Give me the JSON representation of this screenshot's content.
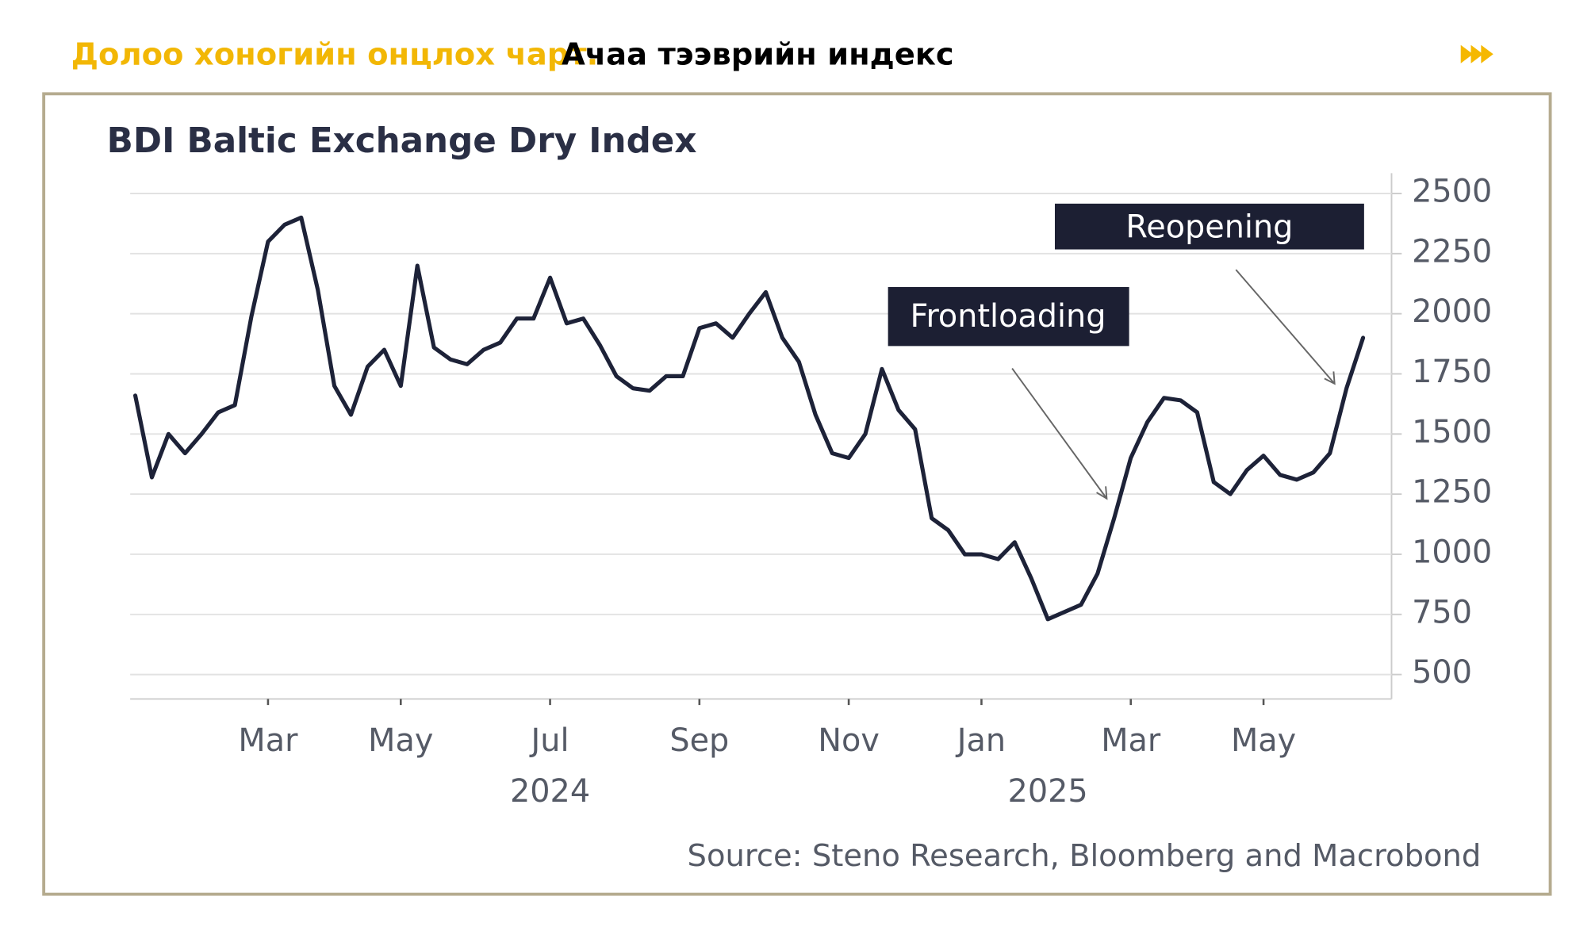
{
  "header": {
    "highlight": "Долоо хоногийн онцлох чарт.",
    "title": "Ачаа тээврийн индекс"
  },
  "chart_data": {
    "type": "line",
    "title": "BDI Baltic Exchange Dry Index",
    "categories": [
      null,
      null,
      null,
      null,
      null,
      null,
      null,
      null,
      "Mar",
      null,
      null,
      null,
      null,
      null,
      null,
      null,
      "May",
      null,
      null,
      null,
      null,
      null,
      null,
      null,
      null,
      "Jul",
      null,
      null,
      null,
      null,
      null,
      null,
      null,
      null,
      "Sep",
      null,
      null,
      null,
      null,
      null,
      null,
      null,
      null,
      "Nov",
      null,
      null,
      null,
      null,
      null,
      null,
      null,
      "Jan",
      null,
      null,
      null,
      null,
      null,
      null,
      null,
      null,
      "Mar",
      null,
      null,
      null,
      null,
      null,
      null,
      null,
      "May",
      null,
      null,
      null,
      null,
      null,
      null
    ],
    "year_labels": [
      {
        "label": "2024",
        "category": 25
      },
      {
        "label": "2025",
        "category": 55
      }
    ],
    "series": [
      {
        "name": "BDI",
        "color": "#1d2238",
        "values": [
          1660,
          1320,
          1500,
          1420,
          1500,
          1590,
          1620,
          1990,
          2300,
          2370,
          2400,
          2100,
          1700,
          1580,
          1780,
          1850,
          1700,
          2200,
          1860,
          1810,
          1790,
          1850,
          1880,
          1980,
          1980,
          2150,
          1960,
          1980,
          1870,
          1740,
          1690,
          1680,
          1740,
          1740,
          1940,
          1960,
          1900,
          2000,
          2090,
          1900,
          1800,
          1580,
          1420,
          1400,
          1500,
          1770,
          1600,
          1520,
          1150,
          1100,
          1000,
          1000,
          980,
          1050,
          900,
          730,
          760,
          790,
          920,
          1150,
          1400,
          1550,
          1650,
          1640,
          1590,
          1300,
          1250,
          1350,
          1410,
          1330,
          1310,
          1340,
          1420,
          1690,
          1900
        ]
      }
    ],
    "ylim": [
      400,
      2560
    ],
    "yticks": [
      500,
      750,
      1000,
      1250,
      1500,
      1750,
      2000,
      2250,
      2500
    ],
    "grid": true,
    "annotations": [
      {
        "text": "Frontloading",
        "category": 59
      },
      {
        "text": "Reopening",
        "category": 73
      }
    ],
    "source": "Source: Steno Research, Bloomberg and Macrobond"
  }
}
